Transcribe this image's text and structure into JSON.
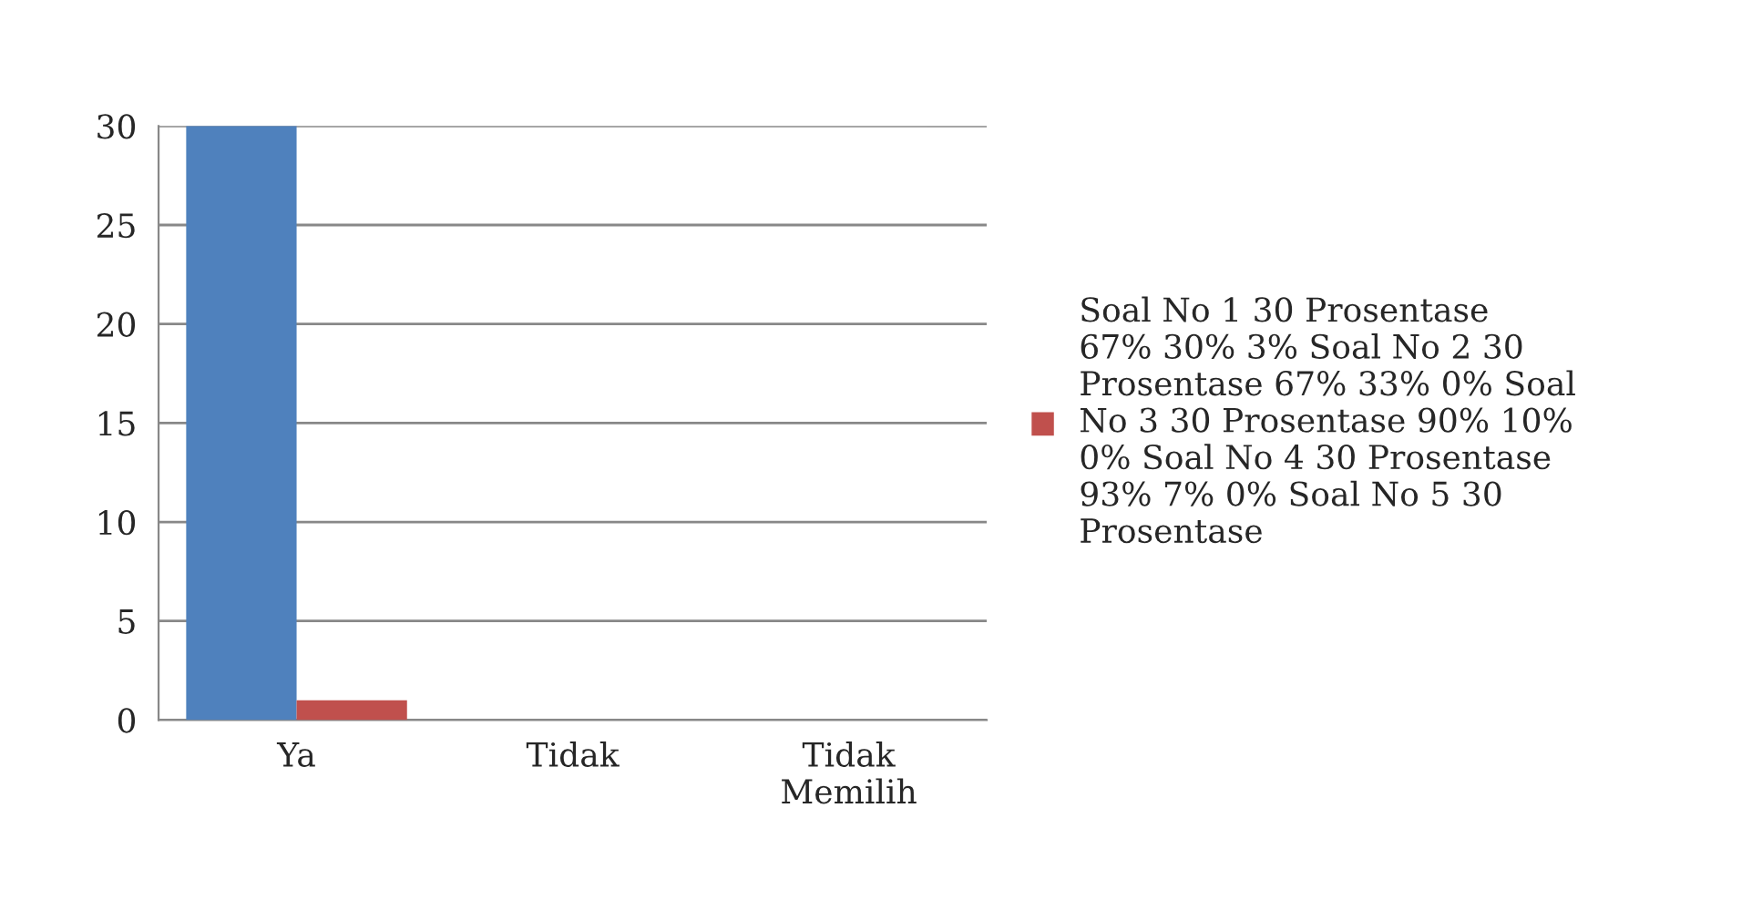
{
  "chart_data": {
    "type": "bar",
    "categories": [
      "Ya",
      "Tidak",
      "Tidak Memilih"
    ],
    "series": [
      {
        "color": "#4f81bd",
        "values": [
          30,
          0,
          0
        ]
      },
      {
        "name": "Soal No 1 30 Prosentase 67% 30% 3% Soal No 2 30 Prosentase 67% 33% 0% Soal No 3 30 Prosentase 90% 10% 0% Soal No 4 30 Prosentase 93% 7% 0% Soal No 5 30 Prosentase",
        "color": "#c0504d",
        "values": [
          1,
          0,
          0
        ]
      }
    ],
    "ylim": [
      0,
      30
    ],
    "yticks": [
      0,
      5,
      10,
      15,
      20,
      25,
      30
    ],
    "grid": "y",
    "legend": "right"
  }
}
